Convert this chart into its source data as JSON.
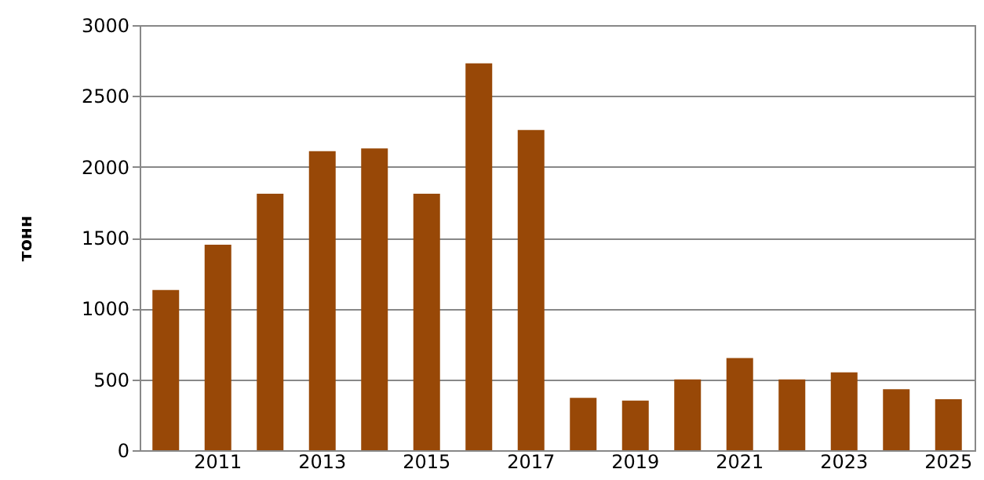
{
  "chart_data": {
    "type": "bar",
    "ylabel": "тонн",
    "categories": [
      null,
      "2011",
      null,
      "2013",
      null,
      "2015",
      null,
      "2017",
      null,
      "2019",
      null,
      "2021",
      null,
      "2023",
      null,
      "2025"
    ],
    "values": [
      1130,
      1450,
      1810,
      2110,
      2130,
      1810,
      2730,
      2260,
      370,
      350,
      500,
      650,
      500,
      550,
      430,
      360
    ],
    "color": "#984807",
    "ylim": [
      0,
      3000
    ],
    "yticks": [
      0,
      500,
      1000,
      1500,
      2000,
      2500,
      3000
    ],
    "grid": "y"
  }
}
